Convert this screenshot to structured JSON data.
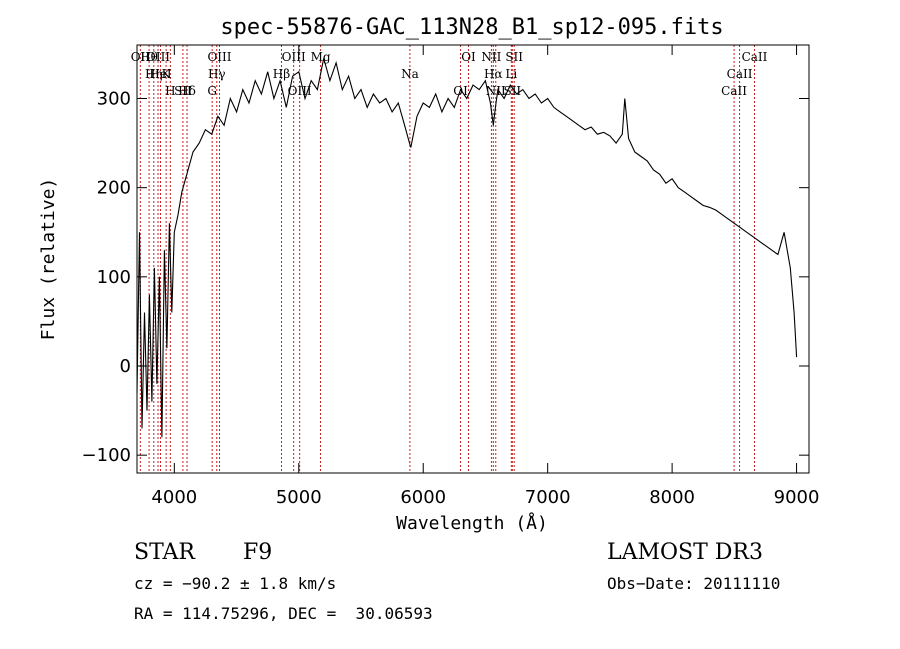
{
  "chart_data": {
    "type": "line",
    "title": "spec-55876-GAC_113N28_B1_sp12-095.fits",
    "xlabel": "Wavelength (Å)",
    "ylabel": "Flux (relative)",
    "xlim": [
      3700,
      9100
    ],
    "ylim": [
      -120,
      360
    ],
    "x_ticks": [
      4000,
      5000,
      6000,
      7000,
      8000,
      9000
    ],
    "y_ticks": [
      -100,
      0,
      100,
      200,
      300
    ],
    "x_tick_labels": [
      "4000",
      "5000",
      "6000",
      "7000",
      "8000",
      "9000"
    ],
    "y_tick_labels": [
      "−100",
      "0",
      "100",
      "200",
      "300"
    ],
    "series": [
      {
        "name": "flux",
        "x": [
          3700,
          3720,
          3740,
          3760,
          3780,
          3800,
          3820,
          3840,
          3860,
          3880,
          3900,
          3920,
          3940,
          3960,
          3980,
          4000,
          4030,
          4060,
          4100,
          4150,
          4200,
          4250,
          4300,
          4350,
          4400,
          4450,
          4500,
          4550,
          4600,
          4650,
          4700,
          4750,
          4800,
          4850,
          4900,
          4950,
          5000,
          5050,
          5100,
          5150,
          5200,
          5250,
          5300,
          5350,
          5400,
          5450,
          5500,
          5550,
          5600,
          5650,
          5700,
          5750,
          5800,
          5850,
          5890,
          5900,
          5950,
          6000,
          6050,
          6100,
          6150,
          6200,
          6250,
          6300,
          6350,
          6400,
          6450,
          6500,
          6540,
          6563,
          6580,
          6600,
          6650,
          6700,
          6750,
          6800,
          6850,
          6900,
          6950,
          7000,
          7050,
          7100,
          7150,
          7200,
          7250,
          7300,
          7350,
          7400,
          7450,
          7500,
          7550,
          7600,
          7620,
          7650,
          7700,
          7750,
          7800,
          7850,
          7900,
          7950,
          8000,
          8050,
          8100,
          8150,
          8200,
          8250,
          8300,
          8350,
          8400,
          8450,
          8500,
          8550,
          8600,
          8650,
          8700,
          8750,
          8800,
          8850,
          8900,
          8950,
          8980,
          9000
        ],
        "y": [
          -30,
          150,
          -70,
          60,
          -50,
          80,
          -40,
          110,
          -20,
          100,
          -80,
          130,
          20,
          160,
          60,
          150,
          170,
          195,
          215,
          240,
          250,
          265,
          260,
          280,
          270,
          300,
          285,
          310,
          295,
          320,
          305,
          330,
          300,
          320,
          290,
          325,
          330,
          300,
          320,
          310,
          345,
          320,
          340,
          310,
          325,
          300,
          310,
          290,
          305,
          295,
          300,
          285,
          295,
          270,
          250,
          245,
          280,
          295,
          290,
          305,
          285,
          300,
          290,
          310,
          300,
          315,
          310,
          320,
          295,
          270,
          290,
          310,
          300,
          315,
          305,
          310,
          300,
          305,
          295,
          300,
          290,
          285,
          280,
          275,
          270,
          265,
          268,
          260,
          262,
          258,
          250,
          260,
          300,
          255,
          240,
          235,
          230,
          220,
          215,
          205,
          210,
          200,
          195,
          190,
          185,
          180,
          178,
          175,
          170,
          165,
          160,
          155,
          150,
          145,
          140,
          135,
          130,
          125,
          150,
          110,
          60,
          10
        ]
      }
    ],
    "line_labels": [
      {
        "text": "Hθ",
        "wavelength": 3797
      },
      {
        "text": "K",
        "wavelength": 3934
      },
      {
        "text": "Hδ",
        "wavelength": 4102
      },
      {
        "text": "OII",
        "wavelength": 3727
      },
      {
        "text": "HeI",
        "wavelength": 3889
      },
      {
        "text": "SII",
        "wavelength": 4069
      },
      {
        "text": "OIII",
        "wavelength": 3869
      },
      {
        "text": "Hη",
        "wavelength": 3835
      },
      {
        "text": "H",
        "wavelength": 3968
      },
      {
        "text": "OIII",
        "wavelength": 4363
      },
      {
        "text": "Hγ",
        "wavelength": 4341
      },
      {
        "text": "G",
        "wavelength": 4304
      },
      {
        "text": "OIII",
        "wavelength": 4959
      },
      {
        "text": "Hβ",
        "wavelength": 4861
      },
      {
        "text": "OIII",
        "wavelength": 5007
      },
      {
        "text": "Mg",
        "wavelength": 5175
      },
      {
        "text": "Na",
        "wavelength": 5893
      },
      {
        "text": "OI",
        "wavelength": 6300
      },
      {
        "text": "OI",
        "wavelength": 6364
      },
      {
        "text": "Hα",
        "wavelength": 6563
      },
      {
        "text": "SII",
        "wavelength": 6716
      },
      {
        "text": "NII",
        "wavelength": 6548
      },
      {
        "text": "Li",
        "wavelength": 6708
      },
      {
        "text": "NII",
        "wavelength": 6583
      },
      {
        "text": "SII",
        "wavelength": 6731
      },
      {
        "text": "CaII",
        "wavelength": 8542
      },
      {
        "text": "CaII",
        "wavelength": 8498
      },
      {
        "text": "CaII",
        "wavelength": 8662
      }
    ],
    "line_wavelengths": [
      3727,
      3797,
      3835,
      3869,
      3889,
      3934,
      3968,
      4069,
      4102,
      4304,
      4341,
      4363,
      4861,
      4959,
      5007,
      5175,
      5893,
      6300,
      6364,
      6548,
      6563,
      6583,
      6708,
      6716,
      6731,
      8498,
      8542,
      8662
    ],
    "line_color": "#c81e1e"
  },
  "info": {
    "class_label": "STAR",
    "subclass": "F9",
    "cz": "cz = −90.2 ± 1.8 km/s",
    "coords": "RA = 114.75296, DEC =  30.06593",
    "survey": "LAMOST DR3",
    "obs_date": "Obs−Date: 20111110"
  }
}
